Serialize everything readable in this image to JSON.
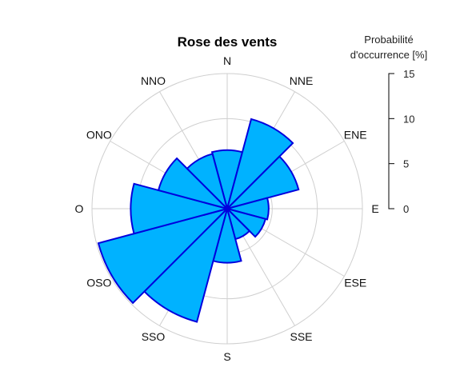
{
  "chart_data": {
    "type": "polar-bar",
    "title": "Rose des vents",
    "directions": [
      "N",
      "NNE",
      "ENE",
      "E",
      "ESE",
      "SSE",
      "S",
      "SSO",
      "OSO",
      "O",
      "ONO",
      "NNO"
    ],
    "angles_deg": [
      0,
      30,
      60,
      90,
      120,
      150,
      180,
      210,
      240,
      270,
      300,
      330
    ],
    "values": [
      6.5,
      10.3,
      8.2,
      4.6,
      4.4,
      3.5,
      6.0,
      13.0,
      14.8,
      10.7,
      7.9,
      6.3
    ],
    "sector_width_deg": 30,
    "fill_color": "#00b2ff",
    "edge_color": "#0000dd",
    "grid": true,
    "grid_rings": [
      5,
      10,
      15
    ],
    "rmax": 15,
    "scale": {
      "title_lines": [
        "Probabilité",
        "d'occurrence [%]"
      ],
      "ticks": [
        0,
        5,
        10,
        15
      ]
    }
  }
}
